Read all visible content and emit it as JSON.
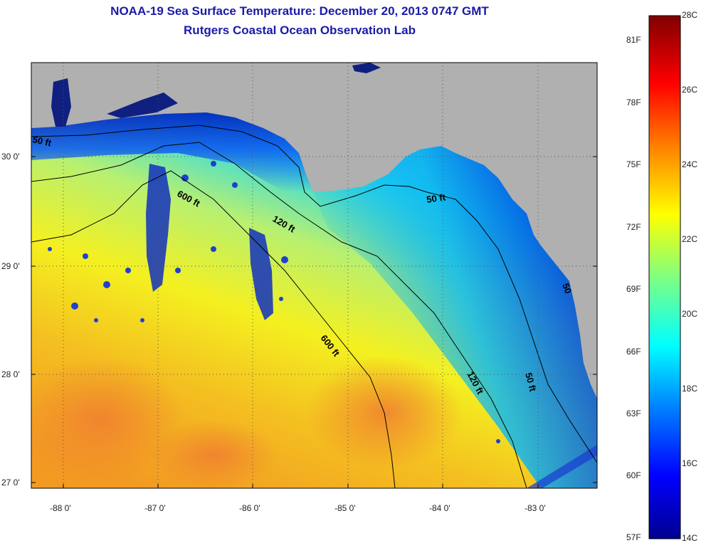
{
  "header": {
    "title": "NOAA-19 Sea Surface Temperature:  December 20, 2013 0747 GMT",
    "subtitle": "Rutgers Coastal Ocean Observation Lab"
  },
  "axes": {
    "lat_labels": [
      "30 0'",
      "29 0'",
      "28 0'",
      "27 0'"
    ],
    "lon_labels": [
      "-88 0'",
      "-87 0'",
      "-86 0'",
      "-85 0'",
      "-84 0'",
      "-83 0'"
    ]
  },
  "contours": {
    "label_50a": "50 ft",
    "label_600a": "600 ft",
    "label_120a": "120 ft",
    "label_50b": "50 ft",
    "label_50c": "50",
    "label_600b": "600 ft",
    "label_120b": "120 ft",
    "label_50d": "50 ft"
  },
  "colorbar": {
    "fahrenheit": [
      "81F",
      "78F",
      "75F",
      "72F",
      "69F",
      "66F",
      "63F",
      "60F",
      "57F"
    ],
    "celsius": [
      "28C",
      "26C",
      "24C",
      "22C",
      "20C",
      "18C",
      "16C",
      "14C"
    ]
  },
  "colors": {
    "land": "#b0b0b0",
    "title": "#1a1aa8"
  }
}
